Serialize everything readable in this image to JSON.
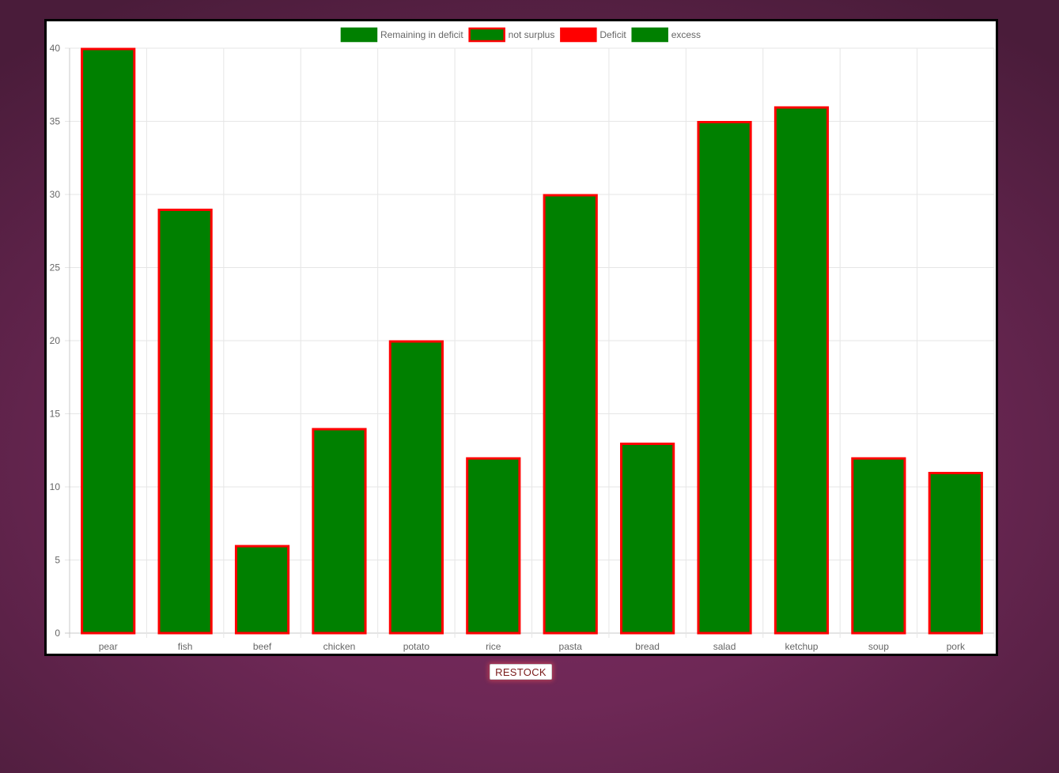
{
  "chart_data": {
    "type": "bar",
    "categories": [
      "pear",
      "fish",
      "beef",
      "chicken",
      "potato",
      "rice",
      "pasta",
      "bread",
      "salad",
      "ketchup",
      "soup",
      "pork"
    ],
    "series": [
      {
        "name": "not surplus",
        "values": [
          40,
          29,
          6,
          14,
          20,
          12,
          30,
          13,
          35,
          36,
          12,
          11
        ],
        "fill": "#008000",
        "border": "#ff0000"
      }
    ],
    "legend": [
      {
        "label": "Remaining in deficit",
        "fill": "#008000",
        "border": "#008000"
      },
      {
        "label": "not surplus",
        "fill": "#008000",
        "border": "#ff0000"
      },
      {
        "label": "Deficit",
        "fill": "#ff0000",
        "border": "#ff0000"
      },
      {
        "label": "excess",
        "fill": "#008000",
        "border": "#008000"
      }
    ],
    "legend_position": "top-center",
    "ylim": [
      0,
      40
    ],
    "y_ticks": [
      "0",
      "5",
      "10",
      "15",
      "20",
      "25",
      "30",
      "35",
      "40"
    ],
    "grid": true,
    "title": "",
    "xlabel": "",
    "ylabel": ""
  },
  "controls": {
    "restock_label": "RESTOCK"
  }
}
